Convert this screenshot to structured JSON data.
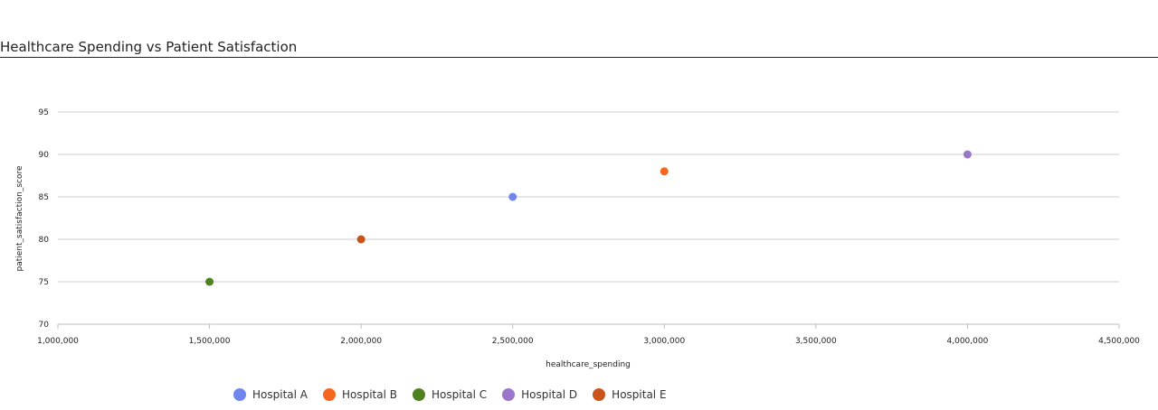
{
  "chart_data": {
    "type": "scatter",
    "title": "Healthcare Spending vs Patient Satisfaction",
    "xlabel": "healthcare_spending",
    "ylabel": "patient_satisfaction_score",
    "xlim": [
      1000000,
      4500000
    ],
    "ylim": [
      70,
      95
    ],
    "x_ticks": [
      1000000,
      1500000,
      2000000,
      2500000,
      3000000,
      3500000,
      4000000,
      4500000
    ],
    "x_tick_labels": [
      "1,000,000",
      "1,500,000",
      "2,000,000",
      "2,500,000",
      "3,000,000",
      "3,500,000",
      "4,000,000",
      "4,500,000"
    ],
    "y_ticks": [
      70,
      75,
      80,
      85,
      90,
      95
    ],
    "y_tick_labels": [
      "70",
      "75",
      "80",
      "85",
      "90",
      "95"
    ],
    "grid": true,
    "legend_position": "bottom",
    "series": [
      {
        "name": "Hospital A",
        "color": "#6f86ed",
        "points": [
          [
            2500000,
            85
          ]
        ]
      },
      {
        "name": "Hospital B",
        "color": "#f5671f",
        "points": [
          [
            3000000,
            88
          ]
        ]
      },
      {
        "name": "Hospital C",
        "color": "#4e821e",
        "points": [
          [
            1500000,
            75
          ]
        ]
      },
      {
        "name": "Hospital D",
        "color": "#9a77c9",
        "points": [
          [
            4000000,
            90
          ]
        ]
      },
      {
        "name": "Hospital E",
        "color": "#c9541a",
        "points": [
          [
            2000000,
            80
          ]
        ]
      }
    ]
  }
}
